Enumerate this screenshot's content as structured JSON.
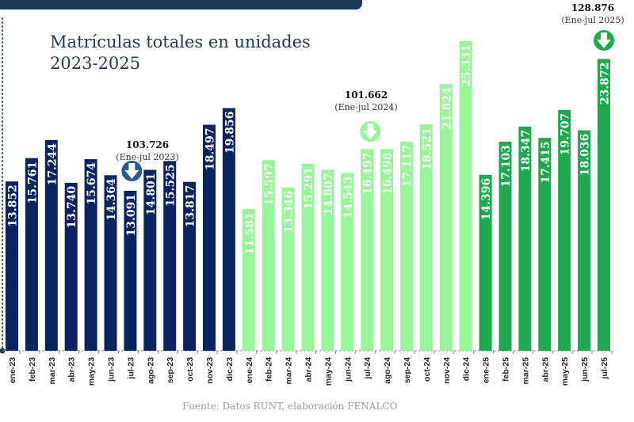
{
  "chart_data": {
    "type": "bar",
    "title": "Matrículas totales en unidades",
    "subtitle": "2023-2025",
    "source": "Fuente: Datos RUNT, elaboración FENALCO",
    "categories": [
      "ene-23",
      "feb-23",
      "mar-23",
      "abr-23",
      "may-23",
      "jun-23",
      "jul-23",
      "ago-23",
      "sep-23",
      "oct-23",
      "nov-23",
      "dic-23",
      "ene-24",
      "feb-24",
      "mar-24",
      "abr-24",
      "may-24",
      "jun-24",
      "jul-24",
      "ago-24",
      "sep-24",
      "oct-24",
      "nov-24",
      "dic-24",
      "ene-25",
      "feb-25",
      "mar-25",
      "abr-25",
      "may-25",
      "jun-25",
      "jul-25"
    ],
    "values": [
      13852,
      15761,
      17244,
      13740,
      15674,
      14364,
      13091,
      14801,
      15525,
      13817,
      18497,
      19856,
      11581,
      15597,
      13346,
      15291,
      14807,
      14543,
      16497,
      16498,
      17117,
      18521,
      21824,
      25331,
      14396,
      17103,
      18347,
      17415,
      19707,
      18036,
      23872
    ],
    "value_labels": [
      "13.852",
      "15.761",
      "17.244",
      "13.740",
      "15.674",
      "14.364",
      "13.091",
      "14.801",
      "15.525",
      "13.817",
      "18.497",
      "19.856",
      "11.581",
      "15.597",
      "13.346",
      "15.291",
      "14.807",
      "14.543",
      "16.497",
      "16.498",
      "17.117",
      "18.521",
      "21.824",
      "25.331",
      "14.396",
      "17.103",
      "18.347",
      "17.415",
      "19.707",
      "18.036",
      "23.872"
    ],
    "year_colors": {
      "2023": "#0b2461",
      "2024": "#98f59a",
      "2025": "#1fa84f"
    },
    "ylim": [
      0,
      25331
    ],
    "grid": false,
    "annotations": [
      {
        "total": "103.726",
        "period": "(Ene-jul 2023)",
        "bar": 6,
        "color": "#2a5a8c"
      },
      {
        "total": "101.662",
        "period": "(Ene-jul 2024)",
        "bar": 18,
        "color": "#98f59a"
      },
      {
        "total": "128.876",
        "period": "(Ene-jul 2025)",
        "bar": 30,
        "color": "#1fa84f"
      }
    ]
  }
}
